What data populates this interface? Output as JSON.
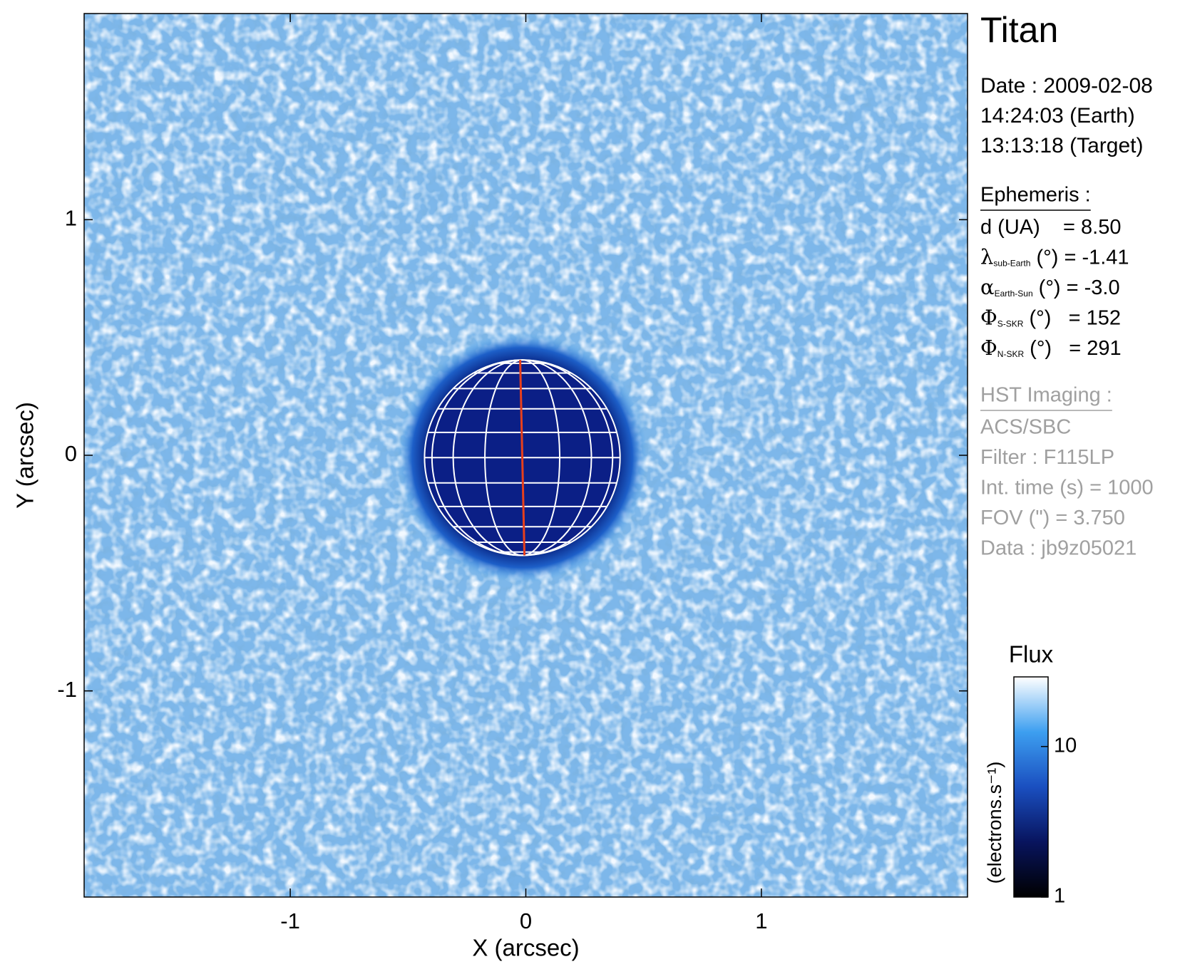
{
  "chart_data": {
    "type": "image",
    "title": "Titan",
    "xlabel": "X (arcsec)",
    "ylabel": "Y (arcsec)",
    "xlim": [
      -1.875,
      1.875
    ],
    "ylim": [
      -1.875,
      1.875
    ],
    "xticks": [
      -1,
      0,
      1
    ],
    "yticks": [
      -1,
      0,
      1
    ],
    "colorbar": {
      "title": "Flux",
      "label": "(electrons.s⁻¹)",
      "log": true,
      "clim": [
        1,
        29
      ],
      "ticks": [
        1,
        10
      ],
      "colormap": [
        "#000000",
        "#08145e",
        "#1a4fc0",
        "#3d9ff0",
        "#ffffff"
      ]
    },
    "info": {
      "date": [
        "Date : 2009-02-08",
        "14:24:03 (Earth)",
        "13:13:18 (Target)"
      ],
      "ephemeris_title": "Ephemeris :",
      "ephemeris": [
        {
          "text": "d (UA)    = 8.50"
        },
        {
          "sym": "λ",
          "sub": "sub-Earth",
          "text": " (°) = -1.41"
        },
        {
          "sym": "α",
          "sub": "Earth-Sun",
          "text": " (°) = -3.0"
        },
        {
          "sym": "Φ",
          "sub": "S-SKR",
          "text": " (°)   = 152"
        },
        {
          "sym": "Φ",
          "sub": "N-SKR",
          "text": " (°)   = 291"
        }
      ],
      "imaging_title": "HST Imaging :",
      "imaging": [
        "ACS/SBC",
        "Filter : F115LP",
        "Int. time (s) = 1000",
        "FOV (\") = 3.750",
        "Data : jb9z05021"
      ]
    }
  }
}
